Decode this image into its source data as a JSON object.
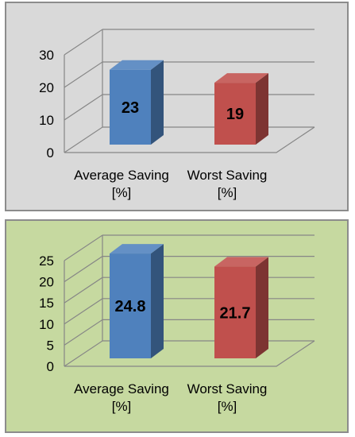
{
  "colors": {
    "panel_top_bg": "#d9d9d9",
    "panel_bottom_bg": "#c6d9a0",
    "average_bar": "#4f81bd",
    "worst_bar": "#c0504d"
  },
  "chart_data": [
    {
      "type": "bar",
      "style": "3d",
      "title": "",
      "xlabel": "",
      "ylabel": "",
      "categories": [
        "Average Saving [%]",
        "Worst Saving [%]"
      ],
      "category_lines": [
        [
          "Average Saving",
          "[%]"
        ],
        [
          "Worst Saving",
          "[%]"
        ]
      ],
      "values": [
        23,
        19
      ],
      "data_labels": [
        "23",
        "19"
      ],
      "ylim": [
        0,
        30
      ],
      "yticks": [
        0,
        10,
        20,
        30
      ],
      "grid": true,
      "legend": "none"
    },
    {
      "type": "bar",
      "style": "3d",
      "title": "",
      "xlabel": "",
      "ylabel": "",
      "categories": [
        "Average Saving [%]",
        "Worst Saving [%]"
      ],
      "category_lines": [
        [
          "Average Saving",
          "[%]"
        ],
        [
          "Worst Saving",
          "[%]"
        ]
      ],
      "values": [
        24.8,
        21.7
      ],
      "data_labels": [
        "24.8",
        "21.7"
      ],
      "ylim": [
        0,
        25
      ],
      "yticks": [
        0,
        5,
        10,
        15,
        20,
        25
      ],
      "grid": true,
      "legend": "none"
    }
  ]
}
